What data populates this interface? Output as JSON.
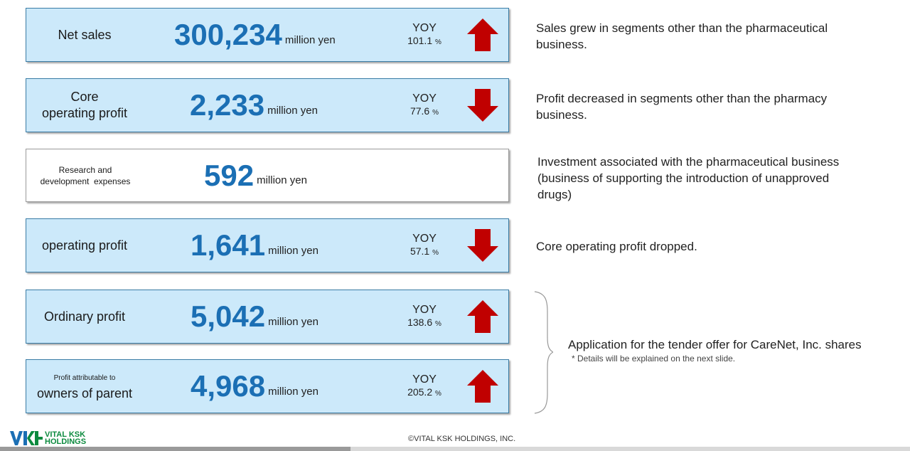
{
  "metrics": [
    {
      "label": "Net sales",
      "value": "300,234",
      "unit": "million yen",
      "yoy_title": "YOY",
      "yoy_value": "101.1",
      "yoy_pct": "%",
      "direction": "up"
    },
    {
      "label1": "Core",
      "label2": "operating profit",
      "value": "2,233",
      "unit": "million yen",
      "yoy_title": "YOY",
      "yoy_value": "77.6",
      "yoy_pct": "%",
      "direction": "down"
    },
    {
      "label1": "Research and",
      "label2": "development  expenses",
      "value": "592",
      "unit": "million yen"
    },
    {
      "label": "operating profit",
      "value": "1,641",
      "unit": "million yen",
      "yoy_title": "YOY",
      "yoy_value": "57.1",
      "yoy_pct": "%",
      "direction": "down"
    },
    {
      "label": "Ordinary profit",
      "value": "5,042",
      "unit": "million yen",
      "yoy_title": "YOY",
      "yoy_value": "138.6",
      "yoy_pct": "%",
      "direction": "up"
    },
    {
      "label1": "Profit attributable to",
      "label2": "owners of parent",
      "value": "4,968",
      "unit": "million yen",
      "yoy_title": "YOY",
      "yoy_value": "205.2",
      "yoy_pct": "%",
      "direction": "up"
    }
  ],
  "notes": {
    "net_sales": "Sales grew in segments other than the pharmaceutical business.",
    "core_profit": "Profit decreased in segments other than the pharmacy business.",
    "rnd": "Investment associated with the pharmaceutical business (business of supporting the introduction of unapproved drugs)",
    "operating": "Core operating profit dropped.",
    "application": "Application for the tender offer for CareNet, Inc. shares",
    "application_sub": "* Details will be explained on the next slide."
  },
  "footer": {
    "logo_line1": "VITAL KSK",
    "logo_line2": "HOLDINGS",
    "copyright": "©VITAL KSK HOLDINGS, INC."
  },
  "colors": {
    "card_bg": "#cce9fa",
    "value_blue": "#1b6fb4",
    "arrow_red": "#c00000",
    "logo_green": "#0b8a3e"
  }
}
